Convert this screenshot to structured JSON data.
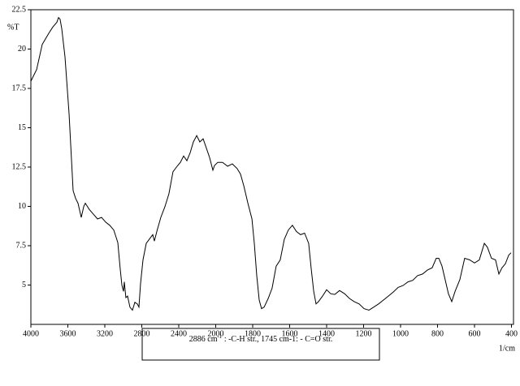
{
  "chart_data": {
    "type": "line",
    "y_label": "%T",
    "x_label": "1/cm",
    "annotation": {
      "text": "2886 cm",
      "superscript": "-1",
      "text_after": " : -C-H str., 1745 cm-1: - C=O str."
    },
    "xlim": [
      4000,
      400
    ],
    "ylim": [
      2.5,
      22.5
    ],
    "xticks": [
      4000,
      3600,
      3200,
      2800,
      2400,
      2000,
      1800,
      1600,
      1400,
      1200,
      1000,
      800,
      600,
      400
    ],
    "yticks": [
      5,
      7.5,
      10,
      12.5,
      15,
      17.5,
      20,
      22.5
    ],
    "series": [
      {
        "color": "#000000",
        "x": [
          4000,
          3938,
          3877,
          3807,
          3763,
          3719,
          3701,
          3684,
          3666,
          3631,
          3587,
          3543,
          3516,
          3490,
          3455,
          3428,
          3411,
          3367,
          3323,
          3279,
          3235,
          3191,
          3147,
          3103,
          3059,
          3033,
          3015,
          2998,
          2989,
          2972,
          2954,
          2928,
          2901,
          2875,
          2848,
          2831,
          2813,
          2787,
          2752,
          2708,
          2681,
          2664,
          2637,
          2594,
          2550,
          2506,
          2462,
          2418,
          2382,
          2347,
          2312,
          2277,
          2242,
          2206,
          2172,
          2136,
          2101,
          2066,
          2031,
          2013,
          1989,
          1963,
          1936,
          1910,
          1884,
          1866,
          1848,
          1826,
          1804,
          1791,
          1778,
          1765,
          1752,
          1738,
          1716,
          1695,
          1673,
          1651,
          1629,
          1607,
          1585,
          1563,
          1541,
          1519,
          1497,
          1484,
          1470,
          1457,
          1444,
          1422,
          1400,
          1378,
          1356,
          1330,
          1303,
          1277,
          1251,
          1224,
          1198,
          1171,
          1145,
          1119,
          1092,
          1066,
          1040,
          1013,
          987,
          960,
          934,
          908,
          881,
          855,
          829,
          807,
          793,
          776,
          758,
          741,
          723,
          705,
          679,
          653,
          626,
          600,
          574,
          547,
          530,
          508,
          486,
          468,
          451,
          433,
          415,
          402
        ],
        "values": [
          17.96,
          18.7,
          20.3,
          21.0,
          21.4,
          21.7,
          22.0,
          21.9,
          21.3,
          19.5,
          15.9,
          11.0,
          10.5,
          10.2,
          9.3,
          10.0,
          10.2,
          9.8,
          9.5,
          9.2,
          9.3,
          9.0,
          8.8,
          8.5,
          7.7,
          6.0,
          5.0,
          4.6,
          5.2,
          4.2,
          4.3,
          3.6,
          3.4,
          3.9,
          3.8,
          3.6,
          5.1,
          6.6,
          7.65,
          8.0,
          8.2,
          7.8,
          8.4,
          9.3,
          9.97,
          10.8,
          12.2,
          12.55,
          12.8,
          13.2,
          12.9,
          13.4,
          14.1,
          14.5,
          14.1,
          14.3,
          13.7,
          13.1,
          12.3,
          12.6,
          12.8,
          12.8,
          12.55,
          12.7,
          12.4,
          12.05,
          11.3,
          10.2,
          9.2,
          7.65,
          5.6,
          4.05,
          3.5,
          3.6,
          4.15,
          4.8,
          6.2,
          6.6,
          7.9,
          8.5,
          8.8,
          8.4,
          8.2,
          8.3,
          7.65,
          6.1,
          4.6,
          3.8,
          3.95,
          4.3,
          4.7,
          4.45,
          4.4,
          4.65,
          4.45,
          4.15,
          3.95,
          3.8,
          3.5,
          3.4,
          3.6,
          3.8,
          4.05,
          4.3,
          4.55,
          4.85,
          4.97,
          5.2,
          5.3,
          5.6,
          5.7,
          5.95,
          6.1,
          6.7,
          6.7,
          6.2,
          5.3,
          4.45,
          3.95,
          4.6,
          5.35,
          6.7,
          6.6,
          6.4,
          6.6,
          7.65,
          7.4,
          6.7,
          6.6,
          5.7,
          6.1,
          6.35,
          6.9,
          7.05
        ]
      }
    ]
  }
}
